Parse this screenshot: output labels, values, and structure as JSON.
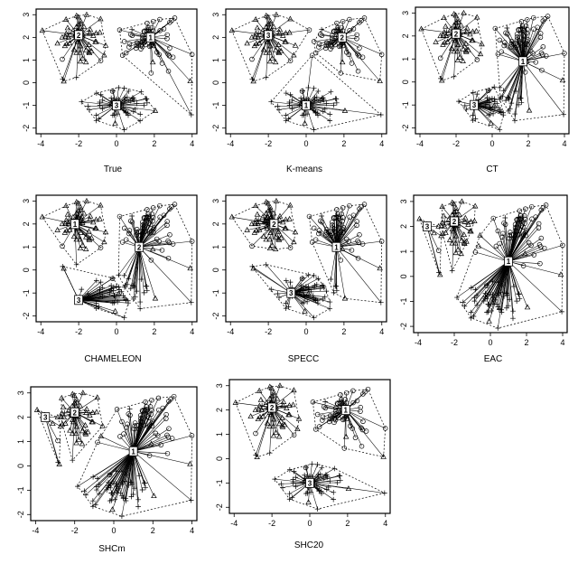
{
  "chart_data": {
    "type": "scatter",
    "xlim": [
      -4,
      4
    ],
    "ylim": [
      -2,
      3
    ],
    "x_ticks": [
      "-4",
      "-2",
      "0",
      "2",
      "4"
    ],
    "y_ticks": [
      "-2",
      "-1",
      "0",
      "1",
      "2",
      "3"
    ],
    "panels": [
      {
        "title": "True",
        "centers": [
          {
            "label": "1",
            "x": 1.8,
            "y": 2.0,
            "symbol": "circle"
          },
          {
            "label": "2",
            "x": -2.0,
            "y": 2.1,
            "symbol": "triangle"
          },
          {
            "label": "3",
            "x": 0.0,
            "y": -1.0,
            "symbol": "plus"
          }
        ]
      },
      {
        "title": "K-means",
        "centers": [
          {
            "label": "1",
            "x": 0.0,
            "y": -1.0,
            "symbol": "circle"
          },
          {
            "label": "2",
            "x": 1.9,
            "y": 2.0,
            "symbol": "triangle"
          },
          {
            "label": "3",
            "x": -2.0,
            "y": 2.1,
            "symbol": "plus"
          }
        ]
      },
      {
        "title": "CT",
        "centers": [
          {
            "label": "1",
            "x": 1.7,
            "y": 0.9,
            "symbol": "circle"
          },
          {
            "label": "2",
            "x": -2.0,
            "y": 2.1,
            "symbol": "triangle"
          },
          {
            "label": "3",
            "x": -1.0,
            "y": -1.0,
            "symbol": "plus"
          }
        ]
      },
      {
        "title": "CHAMELEON",
        "centers": [
          {
            "label": "1",
            "x": -2.2,
            "y": 2.0,
            "symbol": "circle"
          },
          {
            "label": "2",
            "x": 1.2,
            "y": 1.0,
            "symbol": "triangle"
          },
          {
            "label": "3",
            "x": -2.0,
            "y": -1.3,
            "symbol": "plus"
          }
        ]
      },
      {
        "title": "SPECC",
        "centers": [
          {
            "label": "1",
            "x": 1.6,
            "y": 1.0,
            "symbol": "circle"
          },
          {
            "label": "2",
            "x": -1.7,
            "y": 2.0,
            "symbol": "triangle"
          },
          {
            "label": "3",
            "x": -0.8,
            "y": -1.0,
            "symbol": "plus"
          }
        ]
      },
      {
        "title": "EAC",
        "centers": [
          {
            "label": "1",
            "x": 1.0,
            "y": 0.6,
            "symbol": "circle"
          },
          {
            "label": "2",
            "x": -2.0,
            "y": 2.2,
            "symbol": "triangle"
          },
          {
            "label": "3",
            "x": -3.5,
            "y": 2.0,
            "symbol": "plus"
          }
        ]
      },
      {
        "title": "SHCm",
        "centers": [
          {
            "label": "1",
            "x": 1.0,
            "y": 0.6,
            "symbol": "circle"
          },
          {
            "label": "2",
            "x": -2.0,
            "y": 2.2,
            "symbol": "triangle"
          },
          {
            "label": "3",
            "x": -3.5,
            "y": 2.0,
            "symbol": "plus"
          }
        ]
      },
      {
        "title": "SHC20",
        "centers": [
          {
            "label": "1",
            "x": 1.9,
            "y": 2.0,
            "symbol": "circle"
          },
          {
            "label": "2",
            "x": -2.0,
            "y": 2.1,
            "symbol": "triangle"
          },
          {
            "label": "3",
            "x": 0.0,
            "y": -1.0,
            "symbol": "plus"
          }
        ]
      }
    ]
  }
}
